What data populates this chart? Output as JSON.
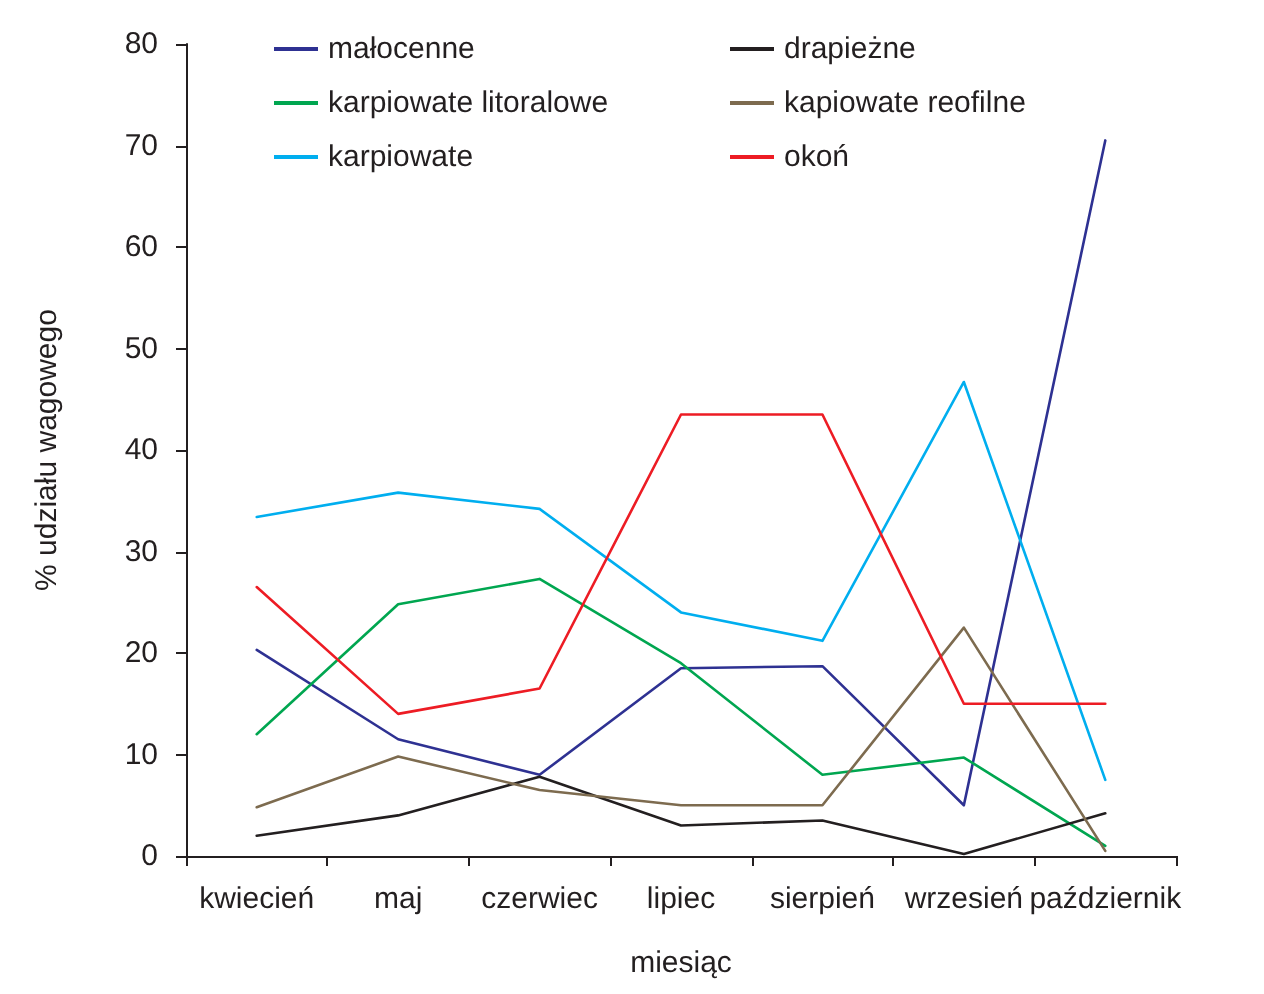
{
  "chart_data": {
    "type": "line",
    "xlabel": "miesiąc",
    "ylabel": "% udziału wagowego",
    "categories": [
      "kwiecień",
      "maj",
      "czerwiec",
      "lipiec",
      "sierpień",
      "wrzesień",
      "październik"
    ],
    "series": [
      {
        "name": "małocenne",
        "color": "#2e3192",
        "values": [
          20.3,
          11.5,
          8.0,
          18.5,
          18.7,
          5.0,
          70.5
        ]
      },
      {
        "name": "karpiowate litoralowe",
        "color": "#00a650",
        "values": [
          12.0,
          24.8,
          27.3,
          19.0,
          8.0,
          9.7,
          1.0
        ]
      },
      {
        "name": "karpiowate",
        "color": "#00aeef",
        "values": [
          33.4,
          35.8,
          34.2,
          24.0,
          21.2,
          46.7,
          7.5
        ]
      },
      {
        "name": "drapieżne",
        "color": "#231f20",
        "values": [
          2.0,
          4.0,
          7.8,
          3.0,
          3.5,
          0.2,
          4.2
        ]
      },
      {
        "name": "kapiowate reofilne",
        "color": "#7d6b4f",
        "values": [
          4.8,
          9.8,
          6.5,
          5.0,
          5.0,
          22.5,
          0.5
        ]
      },
      {
        "name": "okoń",
        "color": "#ed1c24",
        "values": [
          26.5,
          14.0,
          16.5,
          43.5,
          43.5,
          15.0,
          15.0
        ]
      }
    ],
    "ylim": [
      0,
      80
    ],
    "yticks": [
      0,
      10,
      20,
      30,
      40,
      50,
      60,
      70,
      80
    ],
    "grid": false,
    "legend": "top",
    "marker": "none",
    "line_style": "solid"
  }
}
